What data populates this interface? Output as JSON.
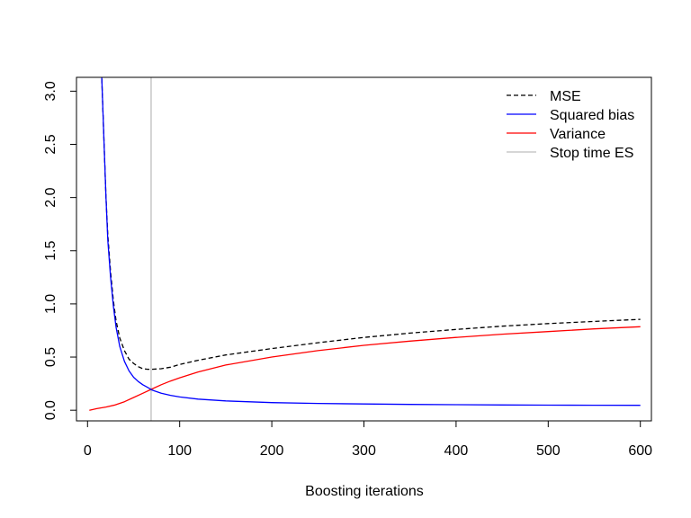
{
  "chart_data": {
    "type": "line",
    "xlabel": "Boosting iterations",
    "ylabel": "",
    "title": "",
    "xlim": [
      -12,
      612
    ],
    "ylim": [
      -0.1,
      3.13
    ],
    "x_ticks": [
      0,
      100,
      200,
      300,
      400,
      500,
      600
    ],
    "y_ticks": [
      0.0,
      0.5,
      1.0,
      1.5,
      2.0,
      2.5,
      3.0
    ],
    "x_tick_labels": [
      "0",
      "100",
      "200",
      "300",
      "400",
      "500",
      "600"
    ],
    "y_tick_labels": [
      "0.0",
      "0.5",
      "1.0",
      "1.5",
      "2.0",
      "2.5",
      "3.0"
    ],
    "grid": false,
    "legend_position": "top-right",
    "vline": {
      "name": "Stop time ES",
      "x": 69,
      "color": "#bebebe"
    },
    "series": [
      {
        "name": "MSE",
        "color": "#000000",
        "dash": "dashed",
        "points": [
          [
            15,
            3.25
          ],
          [
            18,
            2.5
          ],
          [
            20,
            2.0
          ],
          [
            22,
            1.65
          ],
          [
            25,
            1.3
          ],
          [
            28,
            1.03
          ],
          [
            31,
            0.84
          ],
          [
            35,
            0.68
          ],
          [
            40,
            0.56
          ],
          [
            45,
            0.48
          ],
          [
            50,
            0.44
          ],
          [
            55,
            0.41
          ],
          [
            60,
            0.39
          ],
          [
            65,
            0.385
          ],
          [
            70,
            0.385
          ],
          [
            80,
            0.39
          ],
          [
            90,
            0.405
          ],
          [
            100,
            0.43
          ],
          [
            120,
            0.47
          ],
          [
            150,
            0.52
          ],
          [
            200,
            0.58
          ],
          [
            250,
            0.635
          ],
          [
            300,
            0.685
          ],
          [
            350,
            0.725
          ],
          [
            400,
            0.76
          ],
          [
            450,
            0.79
          ],
          [
            500,
            0.815
          ],
          [
            550,
            0.835
          ],
          [
            600,
            0.855
          ]
        ]
      },
      {
        "name": "Squared bias",
        "color": "#0000ff",
        "dash": "solid",
        "points": [
          [
            15,
            3.25
          ],
          [
            18,
            2.5
          ],
          [
            20,
            2.0
          ],
          [
            22,
            1.6
          ],
          [
            25,
            1.25
          ],
          [
            28,
            0.98
          ],
          [
            31,
            0.78
          ],
          [
            35,
            0.6
          ],
          [
            40,
            0.46
          ],
          [
            45,
            0.37
          ],
          [
            50,
            0.31
          ],
          [
            55,
            0.27
          ],
          [
            60,
            0.24
          ],
          [
            65,
            0.215
          ],
          [
            70,
            0.19
          ],
          [
            80,
            0.16
          ],
          [
            90,
            0.14
          ],
          [
            100,
            0.125
          ],
          [
            120,
            0.105
          ],
          [
            150,
            0.088
          ],
          [
            200,
            0.072
          ],
          [
            250,
            0.064
          ],
          [
            300,
            0.059
          ],
          [
            350,
            0.055
          ],
          [
            400,
            0.052
          ],
          [
            450,
            0.05
          ],
          [
            500,
            0.048
          ],
          [
            550,
            0.047
          ],
          [
            600,
            0.046
          ]
        ]
      },
      {
        "name": "Variance",
        "color": "#ff0000",
        "dash": "solid",
        "points": [
          [
            2,
            0.0
          ],
          [
            10,
            0.015
          ],
          [
            20,
            0.03
          ],
          [
            30,
            0.05
          ],
          [
            40,
            0.08
          ],
          [
            50,
            0.12
          ],
          [
            60,
            0.16
          ],
          [
            70,
            0.2
          ],
          [
            80,
            0.24
          ],
          [
            90,
            0.275
          ],
          [
            100,
            0.305
          ],
          [
            120,
            0.36
          ],
          [
            150,
            0.425
          ],
          [
            200,
            0.5
          ],
          [
            250,
            0.56
          ],
          [
            300,
            0.61
          ],
          [
            350,
            0.65
          ],
          [
            400,
            0.685
          ],
          [
            450,
            0.715
          ],
          [
            500,
            0.74
          ],
          [
            550,
            0.765
          ],
          [
            600,
            0.785
          ]
        ]
      }
    ]
  }
}
